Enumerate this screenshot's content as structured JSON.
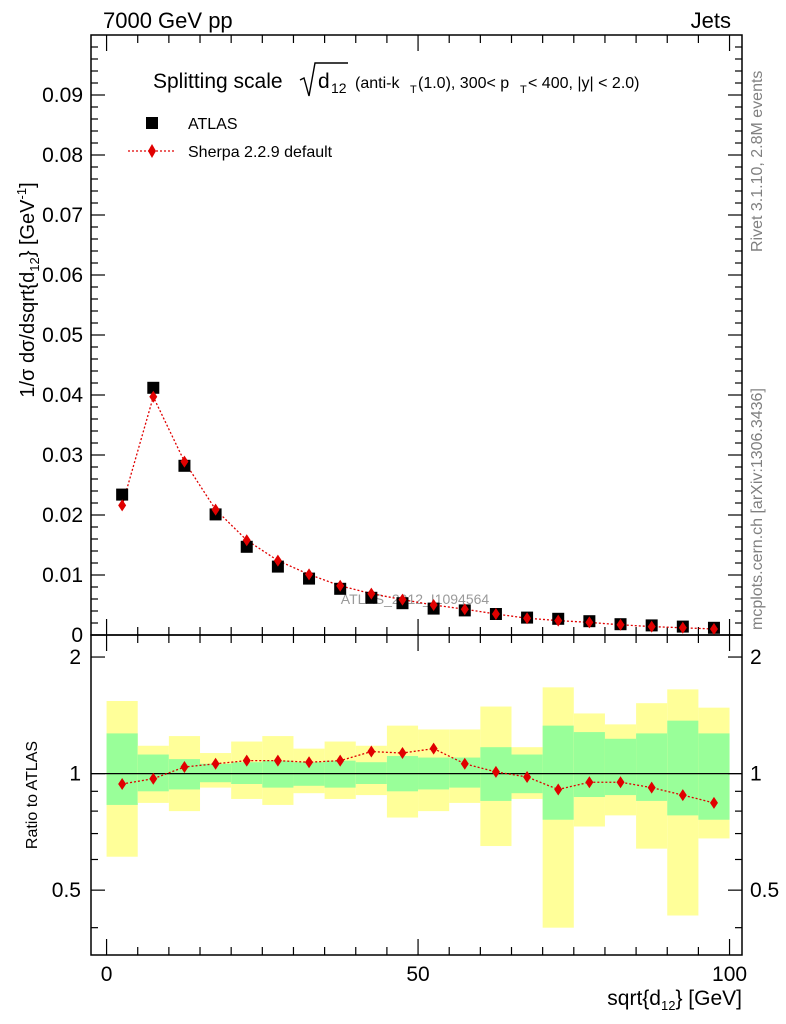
{
  "header": {
    "left": "7000 GeV pp",
    "right": "Jets"
  },
  "plot_title": {
    "main": "Splitting scale",
    "radical_var": "d",
    "radical_sub": "12",
    "detail_parts": [
      "(anti-k",
      "T",
      "(1.0), 300< p",
      "T",
      " < 400, |y| < 2.0)"
    ]
  },
  "side_labels": {
    "rivet": "Rivet 3.1.10,  2.8M events",
    "mcplots": "mcplots.cern.ch [arXiv:1306.3436]"
  },
  "watermark": "ATLAS_2012_I1094564",
  "colors": {
    "data": "#000000",
    "mc": "#e00000",
    "band_inner": "#99ff99",
    "band_outer": "#ffff99"
  },
  "chart_data": [
    {
      "type": "scatter",
      "panel": "main",
      "ylabel_parts": [
        "1/σ dσ/dsqrt{d",
        "12",
        "} [GeV",
        "-1",
        "]"
      ],
      "ylim": [
        0,
        0.1
      ],
      "yticks": [
        "0",
        "0.01",
        "0.02",
        "0.03",
        "0.04",
        "0.05",
        "0.06",
        "0.07",
        "0.08",
        "0.09"
      ],
      "xlim": [
        -2.5,
        102
      ],
      "legend_position": "top-left",
      "x": [
        2.5,
        7.5,
        12.5,
        17.5,
        22.5,
        27.5,
        32.5,
        37.5,
        42.5,
        47.5,
        52.5,
        57.5,
        62.5,
        67.5,
        72.5,
        77.5,
        82.5,
        87.5,
        92.5,
        97.5
      ],
      "series": [
        {
          "name": "ATLAS",
          "marker": "square",
          "values": [
            0.0234,
            0.0412,
            0.0282,
            0.0201,
            0.0147,
            0.0114,
            0.0094,
            0.0077,
            0.0062,
            0.0053,
            0.0044,
            0.0041,
            0.0035,
            0.0029,
            0.0027,
            0.0023,
            0.0018,
            0.0016,
            0.0014,
            0.0012
          ]
        },
        {
          "name": "Sherpa 2.2.9 default",
          "marker": "diamond",
          "values": [
            0.0216,
            0.0397,
            0.0289,
            0.0209,
            0.0158,
            0.0124,
            0.0101,
            0.0082,
            0.0069,
            0.0059,
            0.005,
            0.0043,
            0.0035,
            0.0028,
            0.0024,
            0.0021,
            0.0017,
            0.0014,
            0.0012,
            0.001
          ]
        }
      ]
    },
    {
      "type": "scatter",
      "panel": "ratio",
      "ylabel": "Ratio to ATLAS",
      "xlabel_parts": [
        "sqrt{d",
        "12",
        "} [GeV]"
      ],
      "xlim": [
        -2.5,
        102
      ],
      "xticks": [
        "0",
        "50",
        "100"
      ],
      "ylim": [
        0.34,
        2.28
      ],
      "yticks": [
        "0.5",
        "1",
        "2"
      ],
      "x_edges": [
        0,
        5,
        10,
        15,
        20,
        25,
        30,
        35,
        40,
        45,
        50,
        55,
        60,
        65,
        70,
        75,
        80,
        85,
        90,
        95,
        100
      ],
      "bands": {
        "inner": {
          "lo": [
            0.83,
            0.9,
            0.91,
            0.95,
            0.94,
            0.92,
            0.93,
            0.92,
            0.94,
            0.9,
            0.91,
            0.92,
            0.85,
            0.89,
            0.76,
            0.87,
            0.88,
            0.85,
            0.78,
            0.76
          ],
          "hi": [
            1.27,
            1.12,
            1.09,
            1.06,
            1.07,
            1.08,
            1.07,
            1.08,
            1.07,
            1.11,
            1.1,
            1.1,
            1.17,
            1.12,
            1.33,
            1.28,
            1.23,
            1.27,
            1.37,
            1.27
          ]
        },
        "outer": {
          "lo": [
            0.61,
            0.84,
            0.8,
            0.92,
            0.86,
            0.83,
            0.89,
            0.86,
            0.88,
            0.77,
            0.8,
            0.84,
            0.65,
            0.86,
            0.4,
            0.73,
            0.78,
            0.64,
            0.43,
            0.68
          ],
          "hi": [
            1.54,
            1.18,
            1.25,
            1.13,
            1.21,
            1.25,
            1.16,
            1.21,
            1.18,
            1.33,
            1.3,
            1.3,
            1.49,
            1.17,
            1.67,
            1.43,
            1.34,
            1.52,
            1.65,
            1.48
          ]
        }
      },
      "x": [
        2.5,
        7.5,
        12.5,
        17.5,
        22.5,
        27.5,
        32.5,
        37.5,
        42.5,
        47.5,
        52.5,
        57.5,
        62.5,
        67.5,
        72.5,
        77.5,
        82.5,
        87.5,
        92.5,
        97.5
      ],
      "series": [
        {
          "name": "Sherpa 2.2.9 default",
          "marker": "diamond",
          "values": [
            0.94,
            0.97,
            1.04,
            1.06,
            1.08,
            1.08,
            1.07,
            1.08,
            1.14,
            1.13,
            1.16,
            1.06,
            1.01,
            0.98,
            0.91,
            0.95,
            0.95,
            0.92,
            0.88,
            0.84
          ]
        }
      ]
    }
  ]
}
